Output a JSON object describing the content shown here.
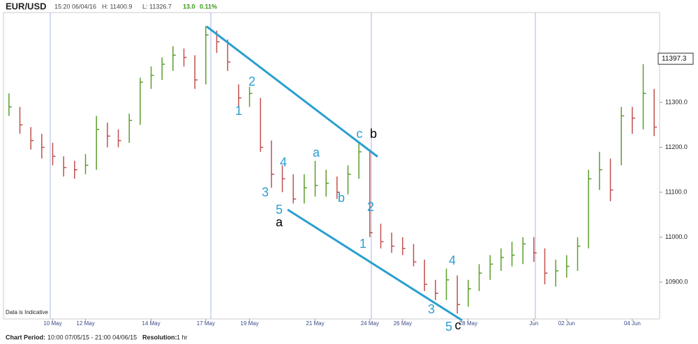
{
  "header": {
    "symbol": "EUR/USD",
    "time": "15:20 06/04/16",
    "high": "H: 11400.9",
    "low": "L: 11326.7",
    "change": "13.0",
    "change_pct": "0.11%"
  },
  "chart_data": {
    "type": "ohlc",
    "categories": [
      null,
      null,
      null,
      null,
      "10 May",
      null,
      null,
      "12 May",
      null,
      null,
      null,
      null,
      null,
      "14 May",
      null,
      null,
      null,
      null,
      "17 May",
      null,
      null,
      null,
      "19 May",
      null,
      null,
      null,
      null,
      null,
      "21 May",
      null,
      null,
      null,
      null,
      "24 May",
      null,
      null,
      "26 May",
      null,
      null,
      null,
      null,
      null,
      "28 May",
      null,
      null,
      null,
      null,
      null,
      "Jun",
      null,
      null,
      "02 Jun",
      null,
      null,
      null,
      null,
      null,
      "04 Jun",
      null,
      null
    ],
    "high": [
      11320,
      11290,
      11245,
      11230,
      11210,
      11180,
      11170,
      11185,
      11270,
      11255,
      11240,
      11275,
      11355,
      11380,
      11400,
      11425,
      11420,
      11405,
      11470,
      11460,
      11440,
      11340,
      11335,
      11310,
      11215,
      11160,
      11140,
      11140,
      11170,
      11150,
      11135,
      11160,
      11210,
      11195,
      11030,
      11010,
      11000,
      10985,
      10950,
      10905,
      10930,
      10915,
      10905,
      10940,
      10960,
      10975,
      10990,
      11000,
      11000,
      10975,
      10950,
      10960,
      11000,
      11150,
      11190,
      11175,
      11290,
      11290,
      11385,
      11330
    ],
    "low": [
      11270,
      11230,
      11195,
      11175,
      11160,
      11135,
      11130,
      11140,
      11150,
      11200,
      11200,
      11210,
      11250,
      11330,
      11350,
      11370,
      11380,
      11330,
      11340,
      11410,
      11370,
      11290,
      11290,
      11190,
      11110,
      11100,
      11075,
      11075,
      11090,
      11090,
      11085,
      11095,
      11130,
      11000,
      10975,
      10965,
      10960,
      10935,
      10880,
      10860,
      10860,
      10830,
      10845,
      10880,
      10905,
      10925,
      10935,
      10940,
      10945,
      10895,
      10890,
      10910,
      10925,
      10975,
      11105,
      11080,
      11160,
      11230,
      11240,
      11225
    ],
    "close": [
      11290,
      11250,
      11215,
      11200,
      11180,
      11155,
      11150,
      11160,
      11240,
      11225,
      11215,
      11260,
      11345,
      11360,
      11385,
      11405,
      11400,
      11350,
      11450,
      11435,
      11390,
      11310,
      11320,
      11200,
      11140,
      11130,
      11085,
      11110,
      11115,
      11120,
      11100,
      11140,
      11190,
      11010,
      10990,
      10980,
      10975,
      10945,
      10895,
      10875,
      10905,
      10850,
      10885,
      10920,
      10940,
      10955,
      10960,
      10985,
      10965,
      10920,
      10925,
      10935,
      10980,
      11130,
      11150,
      11105,
      11270,
      11265,
      11320,
      11245
    ],
    "up_color": "#5a9e2a",
    "down_color": "#c0504d",
    "ylim": [
      10818,
      11500
    ],
    "yticks": [
      {
        "value": 10900,
        "label": "10900.0"
      },
      {
        "value": 11000,
        "label": "11000.0"
      },
      {
        "value": 11100,
        "label": "11100.0"
      },
      {
        "value": 11200,
        "label": "11200.0"
      },
      {
        "value": 11300,
        "label": "11300.0"
      }
    ],
    "last_price": 11397.3,
    "annotations": [
      "1",
      "2",
      "3",
      "4",
      "5",
      "a",
      "a",
      "b",
      "c",
      "b",
      "2",
      "1",
      "4",
      "3",
      "5",
      "c"
    ],
    "note": "Data is Indicative"
  },
  "footer": {
    "period_label": "Chart Period:",
    "period": "10:00 07/05/15 - 21:00 04/06/15",
    "resolution_label": "Resolution:",
    "resolution": "1 hr"
  }
}
